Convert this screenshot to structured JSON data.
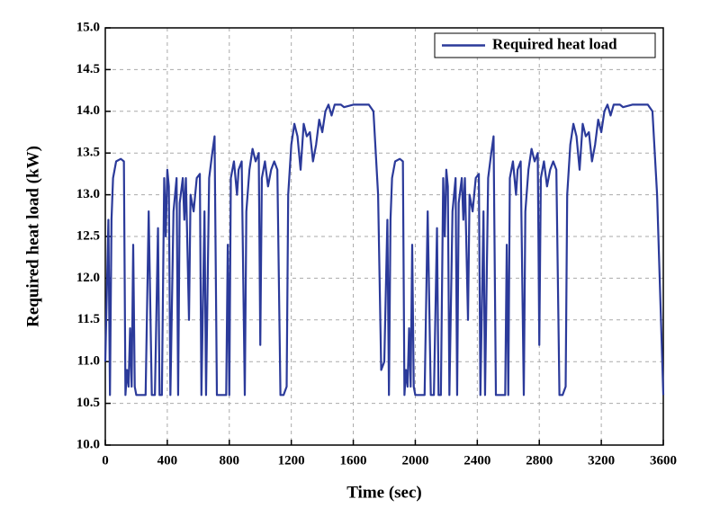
{
  "chart_data": {
    "type": "line",
    "legend_labels": null,
    "xlabel": "Time (sec)",
    "ylabel": "Required heat load (kW)",
    "legend": "upper right",
    "grid": true,
    "xlim": [
      0,
      3600
    ],
    "xticks": [
      0,
      400,
      800,
      1200,
      1600,
      2000,
      2400,
      2800,
      3200,
      3600
    ],
    "ylim": [
      10,
      15
    ],
    "yticks": [
      {
        "value": 10,
        "label": "10.0"
      },
      10.5,
      {
        "value": 11,
        "label": "11.0"
      },
      11.5,
      {
        "value": 12,
        "label": "12.0"
      },
      12.5,
      {
        "value": 13,
        "label": "13.0"
      },
      13.5,
      {
        "value": 14,
        "label": "14.0"
      },
      14.5,
      {
        "value": 15,
        "label": "15.0"
      }
    ],
    "series": [
      {
        "name": "Required heat load",
        "color": "#2b3a9a",
        "x": [
          0,
          20,
          30,
          40,
          50,
          70,
          100,
          120,
          130,
          140,
          150,
          160,
          170,
          180,
          190,
          200,
          260,
          280,
          300,
          320,
          340,
          350,
          365,
          380,
          390,
          400,
          410,
          420,
          440,
          460,
          470,
          480,
          500,
          510,
          520,
          540,
          550,
          570,
          590,
          610,
          620,
          640,
          650,
          670,
          690,
          705,
          720,
          750,
          780,
          790,
          800,
          810,
          830,
          850,
          860,
          880,
          900,
          910,
          930,
          950,
          970,
          990,
          1000,
          1010,
          1030,
          1050,
          1070,
          1090,
          1110,
          1130,
          1150,
          1170,
          1180,
          1200,
          1220,
          1240,
          1260,
          1280,
          1300,
          1320,
          1340,
          1360,
          1380,
          1400,
          1420,
          1440,
          1460,
          1480,
          1520,
          1540,
          1600,
          1700,
          1730,
          1760,
          1780,
          1800,
          1820,
          1830,
          1840,
          1850,
          1870,
          1900,
          1920,
          1930,
          1940,
          1950,
          1960,
          1970,
          1980,
          1990,
          2000,
          2060,
          2080,
          2100,
          2120,
          2140,
          2150,
          2165,
          2180,
          2190,
          2200,
          2210,
          2220,
          2240,
          2260,
          2270,
          2280,
          2300,
          2310,
          2320,
          2340,
          2350,
          2370,
          2390,
          2410,
          2420,
          2440,
          2450,
          2470,
          2490,
          2505,
          2520,
          2550,
          2580,
          2590,
          2600,
          2610,
          2630,
          2650,
          2660,
          2680,
          2700,
          2710,
          2730,
          2750,
          2770,
          2790,
          2800,
          2810,
          2830,
          2850,
          2870,
          2890,
          2910,
          2930,
          2950,
          2970,
          2980,
          3000,
          3020,
          3040,
          3060,
          3080,
          3100,
          3120,
          3140,
          3160,
          3180,
          3200,
          3220,
          3240,
          3260,
          3280,
          3320,
          3340,
          3400,
          3500,
          3530,
          3560,
          3600
        ],
        "values": [
          11.0,
          12.7,
          10.6,
          12.7,
          13.2,
          13.4,
          13.43,
          13.4,
          10.6,
          10.9,
          10.7,
          11.4,
          10.7,
          12.4,
          10.7,
          10.6,
          10.6,
          12.8,
          10.6,
          10.6,
          12.6,
          10.6,
          10.6,
          13.2,
          12.5,
          13.3,
          13.1,
          10.6,
          12.8,
          13.2,
          10.6,
          12.9,
          13.2,
          12.7,
          13.2,
          11.5,
          13.0,
          12.8,
          13.2,
          13.25,
          10.6,
          12.8,
          10.6,
          13.2,
          13.5,
          13.7,
          10.6,
          10.6,
          10.6,
          12.4,
          10.6,
          13.2,
          13.4,
          13.0,
          13.3,
          13.4,
          10.6,
          12.8,
          13.3,
          13.55,
          13.4,
          13.5,
          11.2,
          13.2,
          13.4,
          13.1,
          13.3,
          13.4,
          13.3,
          10.6,
          10.6,
          10.7,
          13.0,
          13.6,
          13.85,
          13.7,
          13.3,
          13.85,
          13.7,
          13.75,
          13.4,
          13.6,
          13.9,
          13.75,
          14.0,
          14.08,
          13.95,
          14.08,
          14.08,
          14.05,
          14.08,
          14.08,
          14.0,
          13.0,
          10.9,
          11.0,
          12.7,
          10.6,
          12.7,
          13.2,
          13.4,
          13.43,
          13.4,
          10.6,
          10.9,
          10.7,
          11.4,
          10.7,
          12.4,
          10.7,
          10.6,
          10.6,
          12.8,
          10.6,
          10.6,
          12.6,
          10.6,
          10.6,
          13.2,
          12.5,
          13.3,
          13.1,
          10.6,
          12.8,
          13.2,
          10.6,
          12.9,
          13.2,
          12.7,
          13.2,
          11.5,
          13.0,
          12.8,
          13.2,
          13.25,
          10.6,
          12.8,
          10.6,
          13.2,
          13.5,
          13.7,
          10.6,
          10.6,
          10.6,
          12.4,
          10.6,
          13.2,
          13.4,
          13.0,
          13.3,
          13.4,
          10.6,
          12.8,
          13.3,
          13.55,
          13.4,
          13.5,
          11.2,
          13.2,
          13.4,
          13.1,
          13.3,
          13.4,
          13.3,
          10.6,
          10.6,
          10.7,
          13.0,
          13.6,
          13.85,
          13.7,
          13.3,
          13.85,
          13.7,
          13.75,
          13.4,
          13.6,
          13.9,
          13.75,
          14.0,
          14.08,
          13.95,
          14.08,
          14.08,
          14.05,
          14.08,
          14.08,
          14.0,
          13.0,
          10.6
        ]
      }
    ]
  }
}
